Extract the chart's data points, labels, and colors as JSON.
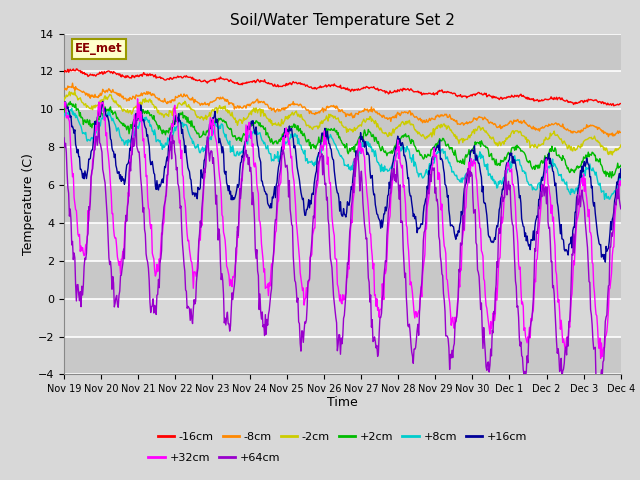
{
  "title": "Soil/Water Temperature Set 2",
  "xlabel": "Time",
  "ylabel": "Temperature (C)",
  "ylim": [
    -4,
    14
  ],
  "yticks": [
    -4,
    -2,
    0,
    2,
    4,
    6,
    8,
    10,
    12,
    14
  ],
  "annotation_text": "EE_met",
  "x_tick_labels": [
    "Nov 19",
    "Nov 20",
    "Nov 21",
    "Nov 22",
    "Nov 23",
    "Nov 24",
    "Nov 25",
    "Nov 26",
    "Nov 27",
    "Nov 28",
    "Nov 29",
    "Nov 30",
    "Dec 1",
    "Dec 2",
    "Dec 3",
    "Dec 4"
  ],
  "legend_order": [
    "-16cm",
    "-8cm",
    "-2cm",
    "+2cm",
    "+8cm",
    "+16cm",
    "+32cm",
    "+64cm"
  ],
  "colors": {
    "-16cm": "#ff0000",
    "-8cm": "#ff8800",
    "-2cm": "#cccc00",
    "+2cm": "#00bb00",
    "+8cm": "#00cccc",
    "+16cm": "#000099",
    "+32cm": "#ff00ff",
    "+64cm": "#9900cc"
  },
  "stripe_colors": [
    "#d8d8d8",
    "#c8c8c8"
  ],
  "fig_bg": "#d8d8d8",
  "plot_bg": "#d8d8d8"
}
